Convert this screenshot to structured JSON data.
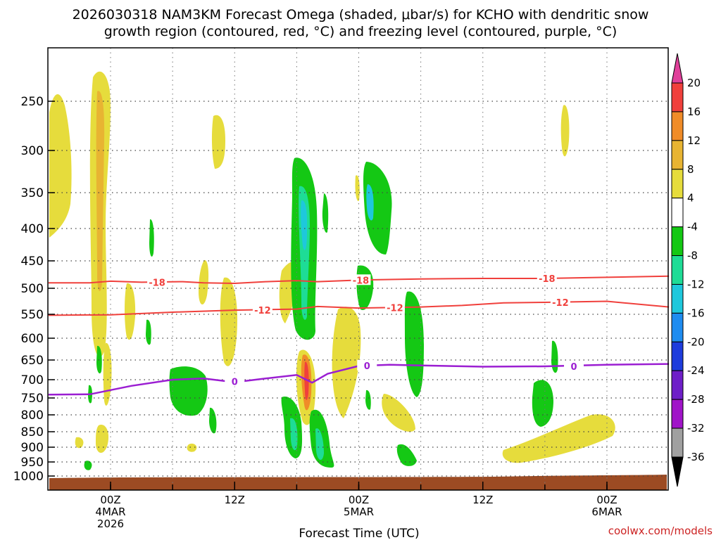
{
  "chart_data": {
    "type": "heatmap",
    "title_lines": [
      "2026030318 NAM3KM Forecast Omega (shaded, μbar/s) for KCHO with dendritic snow",
      "growth region (contoured, red, °C) and freezing level (contoured, purple, °C)"
    ],
    "xlabel": "Forecast Time (UTC)",
    "ylabel": "",
    "y_levels": [
      250,
      300,
      350,
      400,
      450,
      500,
      550,
      600,
      650,
      700,
      750,
      800,
      850,
      900,
      950,
      1000
    ],
    "y_tick_labels": [
      "250",
      "300",
      "350",
      "400",
      "450",
      "500",
      "550",
      "600",
      "650",
      "700",
      "750",
      "800",
      "850",
      "900",
      "950",
      "1000"
    ],
    "x_ticks": [
      {
        "hour": 6,
        "lines": [
          "00Z",
          "4MAR",
          "2026"
        ]
      },
      {
        "hour": 18,
        "lines": [
          "12Z"
        ]
      },
      {
        "hour": 30,
        "lines": [
          "00Z",
          "5MAR"
        ]
      },
      {
        "hour": 42,
        "lines": [
          "12Z"
        ]
      },
      {
        "hour": 54,
        "lines": [
          "00Z",
          "6MAR"
        ]
      }
    ],
    "x_range_hours": [
      0,
      60
    ],
    "colorbar": {
      "labels": [
        "20",
        "16",
        "12",
        "8",
        "4",
        "-4",
        "-8",
        "-12",
        "-16",
        "-20",
        "-24",
        "-28",
        "-32",
        "-36"
      ],
      "colors": [
        "#e0409a",
        "#f0403c",
        "#f08c28",
        "#e8b432",
        "#e6dc3c",
        "#ffffff",
        "#14c814",
        "#1edc96",
        "#1ec8dc",
        "#1e8cf0",
        "#1e3cdc",
        "#6e1ec8",
        "#a014c8",
        "#a0a0a0",
        "#000000"
      ]
    },
    "contour_labels": {
      "dgz_upper": "-18",
      "dgz_lower": "-12",
      "freezing": "0"
    },
    "dgz_upper_line": [
      [
        0,
        490
      ],
      [
        4,
        490
      ],
      [
        6,
        487
      ],
      [
        9,
        489
      ],
      [
        13,
        488
      ],
      [
        15,
        490
      ],
      [
        18,
        491
      ],
      [
        21,
        488
      ],
      [
        24,
        486
      ],
      [
        26,
        488
      ],
      [
        30,
        485
      ],
      [
        36,
        483
      ],
      [
        42,
        482
      ],
      [
        48,
        482
      ],
      [
        54,
        480
      ],
      [
        60,
        478
      ]
    ],
    "dgz_lower_line": [
      [
        0,
        552
      ],
      [
        6,
        551
      ],
      [
        12,
        546
      ],
      [
        18,
        542
      ],
      [
        24,
        540
      ],
      [
        26,
        535
      ],
      [
        30,
        538
      ],
      [
        36,
        536
      ],
      [
        40,
        533
      ],
      [
        44,
        528
      ],
      [
        48,
        527
      ],
      [
        54,
        525
      ],
      [
        60,
        536
      ]
    ],
    "freezing_line": [
      [
        0,
        741
      ],
      [
        4,
        740
      ],
      [
        8,
        717
      ],
      [
        12,
        700
      ],
      [
        15,
        697
      ],
      [
        18,
        707
      ],
      [
        21,
        697
      ],
      [
        24,
        688
      ],
      [
        25.5,
        708
      ],
      [
        27,
        685
      ],
      [
        30,
        665
      ],
      [
        33,
        662
      ],
      [
        36,
        664
      ],
      [
        42,
        667
      ],
      [
        48,
        666
      ],
      [
        54,
        662
      ],
      [
        60,
        660
      ]
    ],
    "ground_color": "#9c4b23",
    "credit": "coolwx.com/models"
  }
}
